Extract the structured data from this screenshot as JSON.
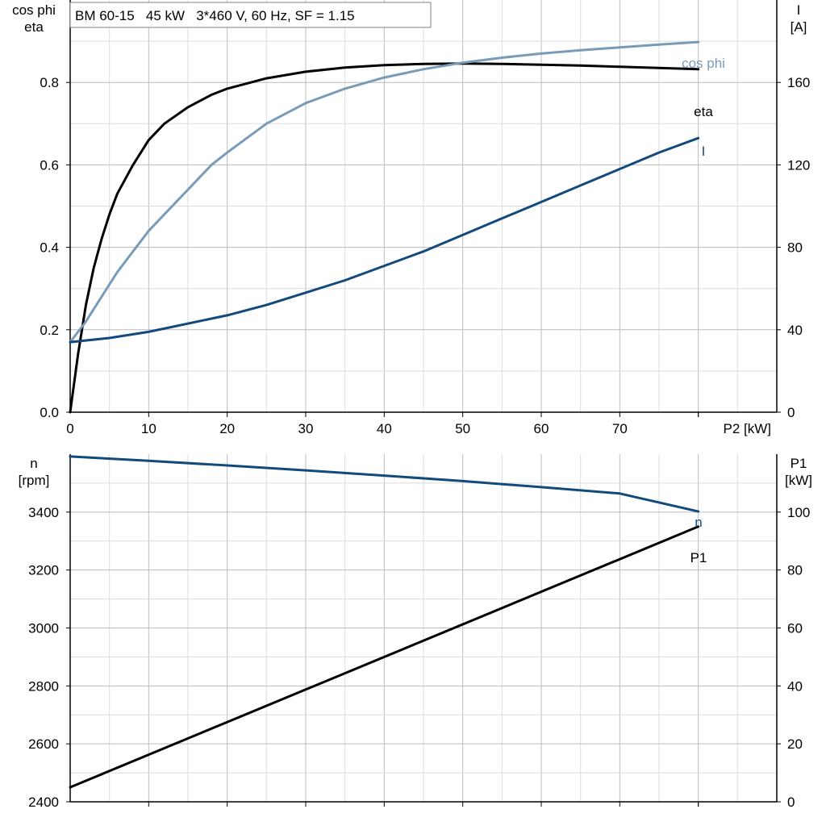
{
  "header": {
    "title": "BM 60-15   45 kW   3*460 V, 60 Hz, SF = 1.15"
  },
  "colors": {
    "eta": "#000000",
    "cos_phi": "#7a9bb8",
    "current": "#134a7c",
    "speed": "#134a7c",
    "p1": "#000000",
    "grid_minor": "#dcdcdc",
    "grid_major": "#bcbcbc",
    "axis": "#000000"
  },
  "chart_data": [
    {
      "type": "line",
      "title": "BM 60-15   45 kW   3*460 V, 60 Hz, SF = 1.15",
      "xlabel": "P2 [kW]",
      "ylabel_left_lines": [
        "cos phi",
        "eta"
      ],
      "ylabel_right_lines": [
        "I",
        "[A]"
      ],
      "xlim": [
        0,
        90
      ],
      "ylim_left": [
        0,
        1.0
      ],
      "ylim_right": [
        0,
        200
      ],
      "x_ticks": [
        0,
        10,
        20,
        30,
        40,
        50,
        60,
        70
      ],
      "y_ticks_left": [
        "0.0",
        "0.2",
        "0.4",
        "0.6",
        "0.8"
      ],
      "y_ticks_right": [
        "0",
        "40",
        "80",
        "120",
        "160"
      ],
      "grid": true,
      "series": [
        {
          "name": "eta",
          "axis": "left",
          "color": "#000000",
          "x": [
            0,
            1,
            2,
            3,
            4,
            5,
            6,
            8,
            10,
            12,
            15,
            18,
            20,
            25,
            30,
            35,
            40,
            45,
            50,
            55,
            60,
            65,
            70,
            75,
            80
          ],
          "y": [
            0.0,
            0.14,
            0.26,
            0.35,
            0.42,
            0.48,
            0.53,
            0.6,
            0.66,
            0.7,
            0.74,
            0.77,
            0.785,
            0.81,
            0.826,
            0.836,
            0.842,
            0.845,
            0.846,
            0.845,
            0.843,
            0.841,
            0.838,
            0.835,
            0.832
          ]
        },
        {
          "name": "cos phi",
          "axis": "left",
          "color": "#7a9bb8",
          "x": [
            0,
            2,
            4,
            6,
            8,
            10,
            12,
            15,
            18,
            20,
            25,
            30,
            35,
            40,
            45,
            50,
            55,
            60,
            65,
            70,
            75,
            80
          ],
          "y": [
            0.17,
            0.22,
            0.28,
            0.34,
            0.39,
            0.44,
            0.48,
            0.54,
            0.6,
            0.63,
            0.7,
            0.75,
            0.785,
            0.812,
            0.832,
            0.848,
            0.86,
            0.87,
            0.878,
            0.885,
            0.892,
            0.898
          ]
        },
        {
          "name": "I",
          "axis": "right",
          "color": "#134a7c",
          "x": [
            0,
            5,
            10,
            15,
            20,
            25,
            30,
            35,
            40,
            45,
            50,
            55,
            60,
            65,
            70,
            75,
            80
          ],
          "y": [
            34,
            36,
            39,
            43,
            47,
            52,
            58,
            64,
            71,
            78,
            86,
            94,
            102,
            110,
            118,
            126,
            133
          ]
        }
      ]
    },
    {
      "type": "line",
      "xlim": [
        0,
        90
      ],
      "ylabel_left_lines": [
        "n",
        "[rpm]"
      ],
      "ylabel_right_lines": [
        "P1",
        "[kW]"
      ],
      "ylim_left": [
        2400,
        3600
      ],
      "ylim_right": [
        0,
        120
      ],
      "y_ticks_left": [
        "2400",
        "2600",
        "2800",
        "3000",
        "3200",
        "3400"
      ],
      "y_ticks_right": [
        "0",
        "20",
        "40",
        "60",
        "80",
        "100"
      ],
      "grid": true,
      "series": [
        {
          "name": "n",
          "axis": "left",
          "color": "#134a7c",
          "x": [
            0,
            10,
            20,
            30,
            40,
            50,
            60,
            70,
            80
          ],
          "y": [
            3592,
            3577,
            3561,
            3544,
            3526,
            3507,
            3486,
            3464,
            3402
          ]
        },
        {
          "name": "P1",
          "axis": "right",
          "color": "#000000",
          "x": [
            0,
            80
          ],
          "y": [
            5,
            95
          ]
        }
      ]
    }
  ]
}
